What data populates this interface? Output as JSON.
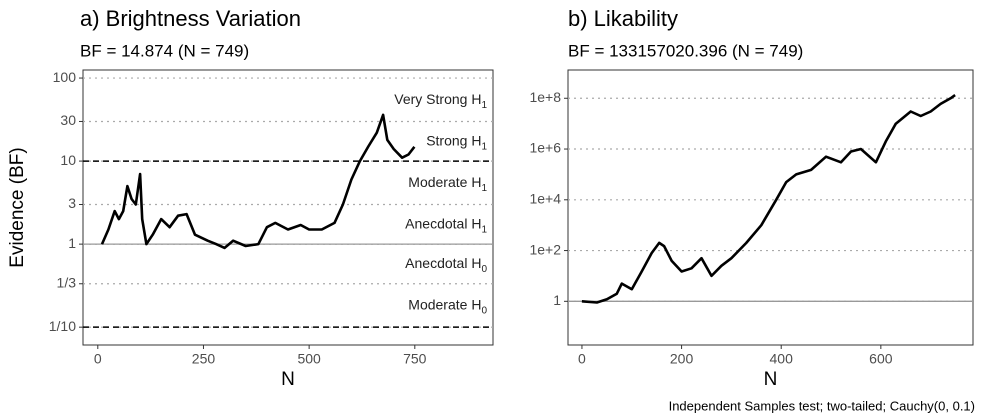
{
  "caption": "Independent Samples test; two-tailed; Cauchy(0, 0.1)",
  "chart_data": [
    {
      "type": "line",
      "title": "a) Brightness Variation",
      "subtitle": "BF = 14.874 (N = 749)",
      "xlabel": "N",
      "ylabel": "Evidence (BF)",
      "ylog": true,
      "grid": true,
      "xlim": [
        -35,
        935
      ],
      "xticks": [
        0,
        250,
        500,
        750
      ],
      "ylim": [
        0.061,
        125
      ],
      "yticks": [
        100,
        30,
        10,
        3,
        1,
        {
          "value": 0.3333,
          "label": "1/3"
        },
        {
          "value": 0.1,
          "label": "1/10"
        }
      ],
      "ref_lines": [
        {
          "value": 10,
          "style": "dashed"
        },
        {
          "value": 1,
          "style": "solid"
        },
        {
          "value": 0.1,
          "style": "dashed"
        }
      ],
      "bands": [
        {
          "text": "Very Strong H",
          "sub": "1"
        },
        {
          "text": "Strong H",
          "sub": "1"
        },
        {
          "text": "Moderate H",
          "sub": "1"
        },
        {
          "text": "Anecdotal H",
          "sub": "1"
        },
        {
          "text": "Anecdotal H",
          "sub": "0"
        },
        {
          "text": "Moderate H",
          "sub": "0"
        }
      ],
      "series": [
        {
          "color": "#000000",
          "x": [
            10,
            25,
            40,
            50,
            60,
            70,
            80,
            90,
            100,
            105,
            115,
            130,
            150,
            170,
            190,
            210,
            230,
            260,
            280,
            300,
            320,
            350,
            380,
            400,
            420,
            450,
            480,
            500,
            530,
            560,
            580,
            600,
            620,
            640,
            660,
            675,
            685,
            700,
            720,
            735,
            749
          ],
          "values": [
            1,
            1.5,
            2.5,
            2,
            2.5,
            5,
            3.5,
            3,
            7,
            2,
            1,
            1.3,
            2,
            1.6,
            2.2,
            2.3,
            1.3,
            1.1,
            1.0,
            0.9,
            1.1,
            0.95,
            1.0,
            1.6,
            1.8,
            1.5,
            1.7,
            1.5,
            1.5,
            1.8,
            3,
            6,
            10,
            15,
            22,
            36,
            18,
            14,
            11,
            12,
            14.874
          ]
        }
      ]
    },
    {
      "type": "line",
      "title": "b) Likability",
      "subtitle": "BF = 133157020.396 (N = 749)",
      "xlabel": "N",
      "ylog": true,
      "grid": true,
      "xlim": [
        -28,
        785
      ],
      "xticks": [
        0,
        200,
        400,
        600
      ],
      "ylim": [
        0.019,
        1300000000
      ],
      "yticks": [
        {
          "value": 100000000,
          "label": "1e+8"
        },
        {
          "value": 1000000,
          "label": "1e+6"
        },
        {
          "value": 10000,
          "label": "1e+4"
        },
        {
          "value": 100,
          "label": "1e+2"
        },
        1
      ],
      "ref_lines": [
        {
          "value": 1,
          "style": "solid"
        }
      ],
      "series": [
        {
          "color": "#000000",
          "x": [
            0,
            30,
            50,
            70,
            80,
            100,
            120,
            140,
            155,
            165,
            180,
            200,
            220,
            240,
            260,
            280,
            300,
            330,
            360,
            390,
            410,
            430,
            460,
            490,
            520,
            540,
            560,
            590,
            610,
            630,
            660,
            680,
            700,
            720,
            740,
            749
          ],
          "values": [
            1,
            0.9,
            1.2,
            2,
            5,
            3,
            15,
            80,
            200,
            150,
            40,
            15,
            20,
            50,
            10,
            25,
            50,
            200,
            1000,
            10000,
            50000,
            100000,
            150000,
            500000,
            300000,
            800000,
            1000000,
            300000,
            2000000,
            10000000,
            30000000,
            20000000,
            30000000,
            60000000,
            100000000,
            133157020.396
          ]
        }
      ]
    }
  ]
}
